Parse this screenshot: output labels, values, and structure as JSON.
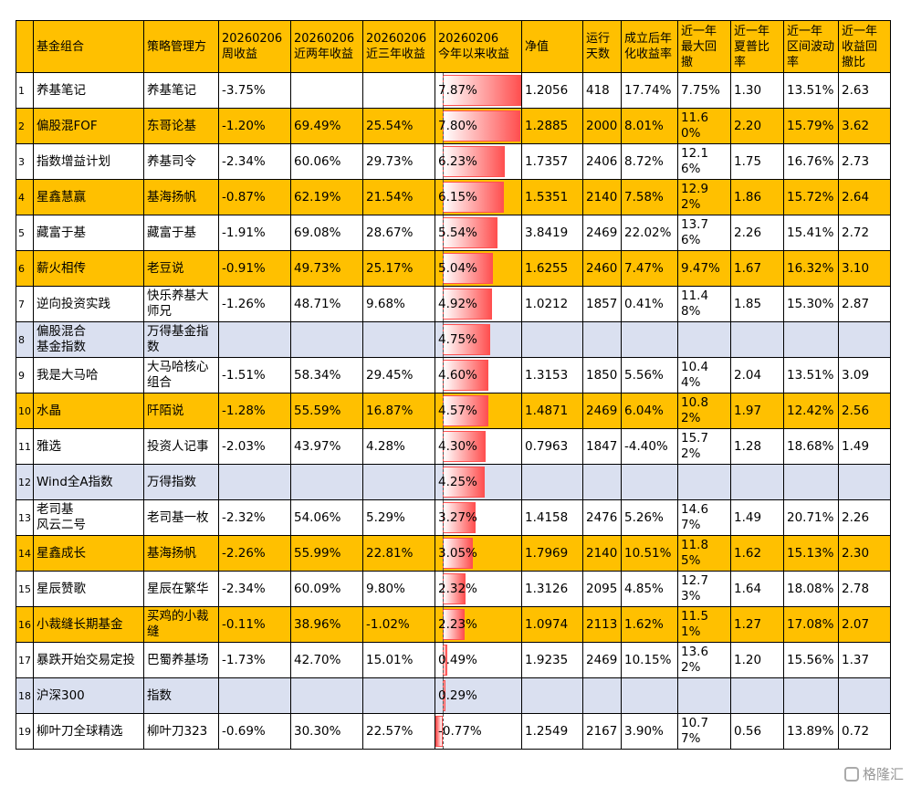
{
  "table": {
    "header": [
      null,
      "基金组合",
      "策略管理方",
      "20260206\n周收益",
      "20260206\n近两年收益",
      "20260206\n近三年收益",
      "20260206\n今年以来收益",
      "净值",
      "运行\n天数",
      "成立后年\n化收益率",
      "近一年\n最大回\n撤",
      "近一年\n夏普比\n率",
      "近一年\n区间波动\n率",
      "近一年\n收益回\n撤比"
    ],
    "header_color": "#FFC000",
    "bar_color": "#FF5050",
    "rows": [
      {
        "color": "#FFFFFF",
        "cells": [
          "1",
          "养基笔记",
          "养基笔记",
          "-3.75%",
          null,
          null,
          {
            "value": 7.87,
            "label": "7.87%"
          },
          "1.2056",
          "418",
          "17.74%",
          "7.75%",
          "1.30",
          "13.51%",
          "2.63"
        ]
      },
      {
        "color": "#FFC000",
        "cells": [
          "2",
          "偏股混FOF",
          "东哥论基",
          "-1.20%",
          "69.49%",
          "25.54%",
          {
            "value": 7.8,
            "label": "7.80%"
          },
          "1.2885",
          "2000",
          "8.01%",
          "11.60%",
          "2.20",
          "15.79%",
          "3.62"
        ]
      },
      {
        "color": "#FFFFFF",
        "cells": [
          "3",
          "指数增益计划",
          "养基司令",
          "-2.34%",
          "60.06%",
          "29.73%",
          {
            "value": 6.23,
            "label": "6.23%"
          },
          "1.7357",
          "2406",
          "8.72%",
          "12.16%",
          "1.75",
          "16.76%",
          "2.73"
        ]
      },
      {
        "color": "#FFC000",
        "cells": [
          "4",
          "星鑫慧赢",
          "基海扬帆",
          "-0.87%",
          "62.19%",
          "21.54%",
          {
            "value": 6.15,
            "label": "6.15%"
          },
          "1.5351",
          "2140",
          "7.58%",
          "12.92%",
          "1.86",
          "15.72%",
          "2.64"
        ]
      },
      {
        "color": "#FFFFFF",
        "cells": [
          "5",
          "藏富于基",
          "藏富于基",
          "-1.91%",
          "69.08%",
          "28.67%",
          {
            "value": 5.54,
            "label": "5.54%"
          },
          "3.8419",
          "2469",
          "22.02%",
          "13.76%",
          "2.26",
          "15.41%",
          "2.72"
        ]
      },
      {
        "color": "#FFC000",
        "cells": [
          "6",
          "薪火相传",
          "老豆说",
          "-0.91%",
          "49.73%",
          "25.17%",
          {
            "value": 5.04,
            "label": "5.04%"
          },
          "1.6255",
          "2460",
          "7.47%",
          "9.47%",
          "1.67",
          "16.32%",
          "3.10"
        ]
      },
      {
        "color": "#FFFFFF",
        "cells": [
          "7",
          "逆向投资实践",
          "快乐养基大师兄",
          "-1.26%",
          "48.71%",
          "9.68%",
          {
            "value": 4.92,
            "label": "4.92%"
          },
          "1.0212",
          "1857",
          "0.41%",
          "11.48%",
          "1.85",
          "15.30%",
          "2.87"
        ]
      },
      {
        "color": "#DAE0F0",
        "cells": [
          "8",
          "偏股混合\n基金指数",
          "万得基金指数",
          null,
          null,
          null,
          {
            "value": 4.75,
            "label": "4.75%"
          },
          null,
          null,
          null,
          null,
          null,
          null,
          null
        ]
      },
      {
        "color": "#FFFFFF",
        "cells": [
          "9",
          "我是大马哈",
          "大马哈核心组合",
          "-1.51%",
          "58.34%",
          "29.45%",
          {
            "value": 4.6,
            "label": "4.60%"
          },
          "1.3153",
          "1850",
          "5.56%",
          "10.44%",
          "2.04",
          "13.51%",
          "3.09"
        ]
      },
      {
        "color": "#FFC000",
        "cells": [
          "10",
          "水晶",
          "阡陌说",
          "-1.28%",
          "55.59%",
          "16.87%",
          {
            "value": 4.57,
            "label": "4.57%"
          },
          "1.4871",
          "2469",
          "6.04%",
          "10.82%",
          "1.97",
          "12.42%",
          "2.56"
        ]
      },
      {
        "color": "#FFFFFF",
        "cells": [
          "11",
          "雅选",
          "投资人记事",
          "-2.03%",
          "43.97%",
          "4.28%",
          {
            "value": 4.3,
            "label": "4.30%"
          },
          "0.7963",
          "1847",
          "-4.40%",
          "15.72%",
          "1.28",
          "18.68%",
          "1.49"
        ]
      },
      {
        "color": "#DAE0F0",
        "cells": [
          "12",
          "Wind全A指数",
          "万得指数",
          null,
          null,
          null,
          {
            "value": 4.25,
            "label": "4.25%"
          },
          null,
          null,
          null,
          null,
          null,
          null,
          null
        ]
      },
      {
        "color": "#FFFFFF",
        "cells": [
          "13",
          "老司基\n风云二号",
          "老司基一枚",
          "-2.32%",
          "54.06%",
          "5.29%",
          {
            "value": 3.27,
            "label": "3.27%"
          },
          "1.4158",
          "2476",
          "5.26%",
          "14.67%",
          "1.49",
          "20.71%",
          "2.26"
        ]
      },
      {
        "color": "#FFC000",
        "cells": [
          "14",
          "星鑫成长",
          "基海扬帆",
          "-2.26%",
          "55.99%",
          "22.81%",
          {
            "value": 3.05,
            "label": "3.05%"
          },
          "1.7969",
          "2140",
          "10.51%",
          "11.85%",
          "1.62",
          "15.13%",
          "2.30"
        ]
      },
      {
        "color": "#FFFFFF",
        "cells": [
          "15",
          "星辰赞歌",
          "星辰在繁华",
          "-2.34%",
          "60.09%",
          "9.80%",
          {
            "value": 2.32,
            "label": "2.32%"
          },
          "1.3126",
          "2095",
          "4.85%",
          "12.73%",
          "1.64",
          "18.08%",
          "2.78"
        ]
      },
      {
        "color": "#FFC000",
        "cells": [
          "16",
          "小裁缝长期基金",
          "买鸡的小裁缝",
          "-0.11%",
          "38.96%",
          "-1.02%",
          {
            "value": 2.23,
            "label": "2.23%"
          },
          "1.0974",
          "2113",
          "1.62%",
          "11.51%",
          "1.27",
          "17.08%",
          "2.07"
        ]
      },
      {
        "color": "#FFFFFF",
        "cells": [
          "17",
          "暴跌开始交易定投",
          "巴蜀养基场",
          "-1.73%",
          "42.70%",
          "15.01%",
          {
            "value": 0.49,
            "label": "0.49%"
          },
          "1.9235",
          "2469",
          "10.15%",
          "13.62%",
          "1.20",
          "15.56%",
          "1.37"
        ]
      },
      {
        "color": "#DAE0F0",
        "cells": [
          "18",
          "沪深300",
          "指数",
          null,
          null,
          null,
          {
            "value": 0.29,
            "label": "0.29%"
          },
          null,
          null,
          null,
          null,
          null,
          null,
          null
        ]
      },
      {
        "color": "#FFFFFF",
        "cells": [
          "19",
          "柳叶刀全球精选",
          "柳叶刀323",
          "-0.69%",
          "30.30%",
          "22.57%",
          {
            "value": -0.77,
            "label": "-0.77%"
          },
          "1.2549",
          "2167",
          "3.90%",
          "10.77%",
          "0.56",
          "13.89%",
          "0.72"
        ]
      }
    ]
  },
  "watermark": "格隆汇"
}
